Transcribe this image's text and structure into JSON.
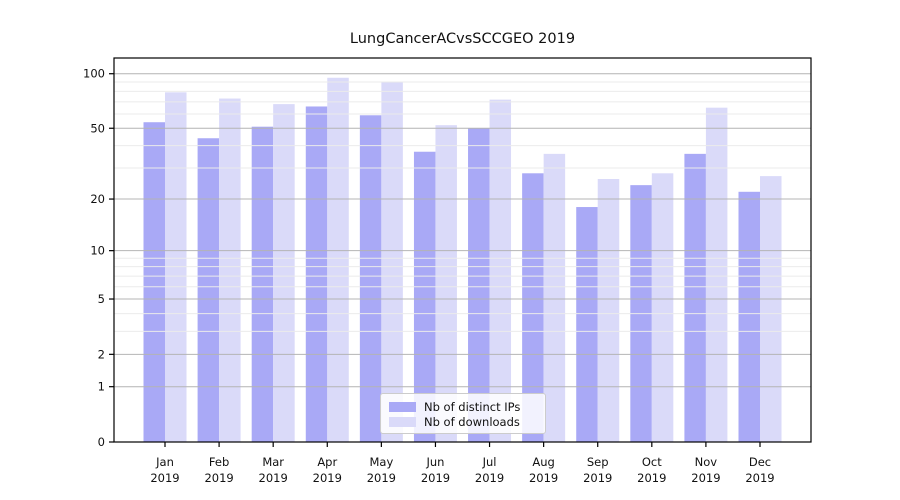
{
  "chart_data": {
    "type": "bar",
    "title": "LungCancerACvsSCCGEO 2019",
    "categories": [
      "Jan",
      "Feb",
      "Mar",
      "Apr",
      "May",
      "Jun",
      "Jul",
      "Aug",
      "Sep",
      "Oct",
      "Nov",
      "Dec"
    ],
    "x_tick_second_line": "2019",
    "series": [
      {
        "name": "Nb of distinct IPs",
        "color": "#a9a9f6",
        "values": [
          54,
          44,
          51,
          66,
          59,
          37,
          50,
          28,
          18,
          24,
          36,
          22
        ]
      },
      {
        "name": "Nb of downloads",
        "color": "#dadaf9",
        "values": [
          79,
          73,
          68,
          95,
          90,
          52,
          72,
          36,
          26,
          28,
          65,
          27
        ]
      }
    ],
    "yscale": "log(v+1)",
    "ylim": [
      0,
      122
    ],
    "y_major_ticks": [
      0,
      1,
      2,
      5,
      10,
      20,
      50,
      100
    ],
    "y_minor_gridlines": [
      3,
      4,
      6,
      7,
      8,
      9,
      30,
      40,
      60,
      70,
      80,
      90
    ],
    "grid": true,
    "grid_above_bars": true,
    "legend_position": "lower center",
    "colors": {
      "major_grid": "#b4b4b4",
      "minor_grid": "#ebebeb",
      "spine": "#000000",
      "tick_label": "#111111"
    }
  }
}
